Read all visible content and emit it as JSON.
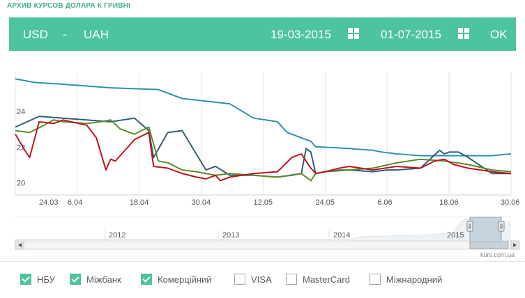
{
  "header": {
    "title": "АРХИВ КУРСОВ ДОЛАРА К ГРИВНІ"
  },
  "toolbar": {
    "from_currency": "USD",
    "dash": "-",
    "to_currency": "UAH",
    "date_from": "19-03-2015",
    "date_to": "01-07-2015",
    "ok_label": "OK",
    "background": "#4ec3a0"
  },
  "chart_data": {
    "type": "line",
    "x_tick_labels": [
      "24.03",
      "6.04",
      "18.04",
      "30.04",
      "12.05",
      "24.05",
      "6.06",
      "18.06",
      "30.06"
    ],
    "y_tick_labels": [
      "24",
      "22",
      "20"
    ],
    "ylim": [
      19.4,
      26.3
    ],
    "xlim": [
      0,
      104
    ],
    "series": [
      {
        "color": "#2e8fb5",
        "x": [
          0,
          4,
          10,
          20,
          30,
          35,
          45,
          50,
          55,
          57,
          60,
          62,
          63,
          70,
          75,
          77,
          80,
          85,
          90,
          95,
          100,
          104
        ],
        "y": [
          25.9,
          25.7,
          25.6,
          25.4,
          25.3,
          24.8,
          24.5,
          23.7,
          23.5,
          22.9,
          22.6,
          22.4,
          22.1,
          22.0,
          21.9,
          21.8,
          21.7,
          21.6,
          21.6,
          21.6,
          21.6,
          21.7
        ]
      },
      {
        "color": "#2b5f7a",
        "x": [
          0,
          5,
          10,
          15,
          20,
          25,
          28,
          29,
          32,
          35,
          40,
          42,
          45,
          50,
          55,
          60,
          61,
          62,
          63,
          65,
          70,
          75,
          78,
          80,
          85,
          89,
          90,
          91,
          93,
          95,
          100,
          104
        ],
        "y": [
          23.2,
          23.8,
          23.7,
          23.6,
          23.5,
          23.7,
          23.0,
          21.5,
          22.9,
          23.0,
          20.8,
          21.0,
          20.5,
          20.5,
          20.4,
          20.6,
          22.0,
          21.8,
          20.6,
          20.7,
          20.8,
          20.7,
          20.8,
          20.8,
          20.9,
          21.9,
          21.7,
          21.8,
          21.8,
          21.5,
          20.6,
          20.6
        ]
      },
      {
        "color": "#5e8a2a",
        "x": [
          0,
          3,
          6,
          8,
          10,
          15,
          18,
          20,
          22,
          25,
          28,
          30,
          32,
          35,
          38,
          40,
          42,
          45,
          50,
          55,
          58,
          60,
          62,
          63,
          65,
          68,
          70,
          75,
          80,
          85,
          90,
          95,
          100,
          104
        ],
        "y": [
          23.0,
          22.9,
          23.3,
          23.6,
          23.5,
          23.4,
          23.5,
          23.6,
          23.1,
          22.8,
          23.2,
          21.3,
          21.2,
          20.8,
          20.7,
          20.6,
          20.5,
          20.6,
          20.5,
          20.4,
          20.5,
          20.6,
          20.2,
          20.6,
          20.7,
          20.8,
          20.8,
          20.9,
          21.2,
          21.4,
          21.3,
          21.1,
          20.8,
          20.7
        ]
      },
      {
        "color": "#c0141d",
        "x": [
          0,
          2,
          3,
          5,
          8,
          10,
          15,
          17,
          19,
          20,
          21,
          25,
          28,
          29,
          32,
          35,
          38,
          40,
          42,
          43,
          45,
          50,
          55,
          58,
          60,
          62,
          63,
          65,
          68,
          70,
          75,
          80,
          85,
          88,
          90,
          92,
          95,
          100,
          104
        ],
        "y": [
          22.8,
          21.9,
          21.5,
          23.5,
          23.4,
          23.6,
          23.3,
          22.6,
          20.8,
          21.4,
          21.3,
          22.5,
          22.9,
          21.0,
          20.9,
          20.6,
          20.4,
          20.3,
          20.5,
          20.2,
          20.4,
          20.6,
          20.7,
          21.5,
          21.7,
          20.9,
          20.6,
          20.7,
          20.9,
          21.0,
          20.8,
          21.0,
          20.9,
          21.3,
          21.4,
          21.1,
          20.9,
          20.7,
          20.6
        ]
      }
    ]
  },
  "navigator": {
    "year_labels": [
      "2012",
      "2013",
      "2014",
      "2015"
    ],
    "credit": "kurs.com.ua"
  },
  "legend": {
    "items": [
      {
        "label": "НБУ",
        "checked": true
      },
      {
        "label": "Міжбанк",
        "checked": true
      },
      {
        "label": "Комерційний",
        "checked": true
      },
      {
        "label": "VISA",
        "checked": false
      },
      {
        "label": "MasterCard",
        "checked": false
      },
      {
        "label": "Міжнародний",
        "checked": false
      }
    ]
  }
}
